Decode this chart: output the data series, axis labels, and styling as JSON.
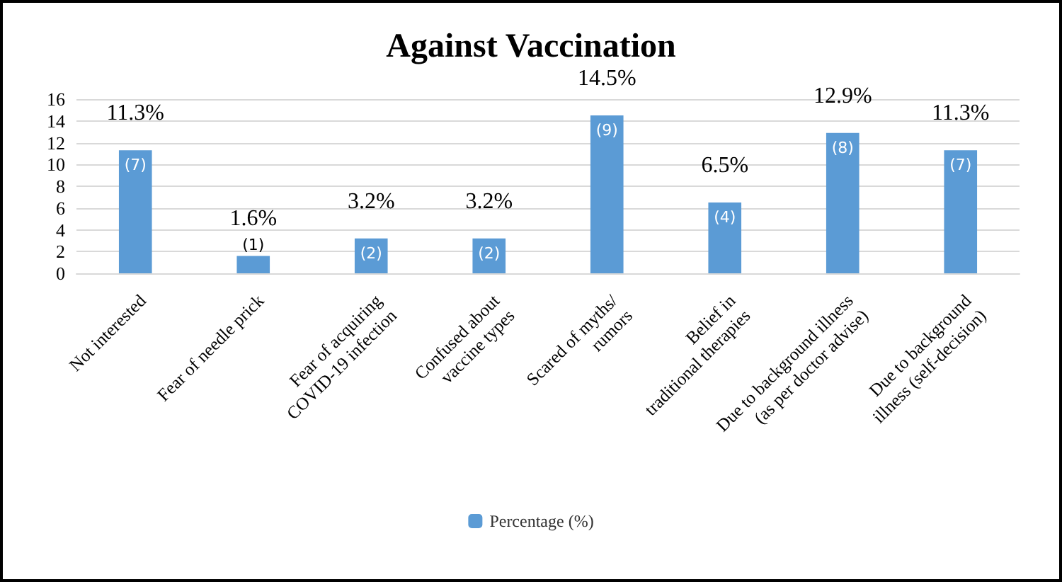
{
  "chart_data": {
    "type": "bar",
    "title": "Against Vaccination",
    "categories": [
      "Not interested",
      "Fear of needle prick",
      "Fear of acquiring\nCOVID-19 infection",
      "Confused about\nvaccine types",
      "Scared of myths/\nrumors",
      "Belief in\ntraditional therapies",
      "Due to background illness\n(as per doctor advise)",
      "Due to background\nillness (self-decision)"
    ],
    "series": [
      {
        "name": "Percentage (%)",
        "color": "#5b9bd5",
        "values": [
          11.3,
          1.6,
          3.2,
          3.2,
          14.5,
          6.5,
          12.9,
          11.3
        ],
        "value_labels": [
          "11.3%",
          "1.6%",
          "3.2%",
          "3.2%",
          "14.5%",
          "6.5%",
          "12.9%",
          "11.3%"
        ]
      }
    ],
    "annotations": [
      "(7)",
      "(1)",
      "(2)",
      "(2)",
      "(9)",
      "(4)",
      "(8)",
      "(7)"
    ],
    "ylim": [
      0,
      16
    ],
    "yticks": [
      0,
      2,
      4,
      6,
      8,
      10,
      12,
      14,
      16
    ],
    "grid": "y",
    "legend": "bottom"
  }
}
